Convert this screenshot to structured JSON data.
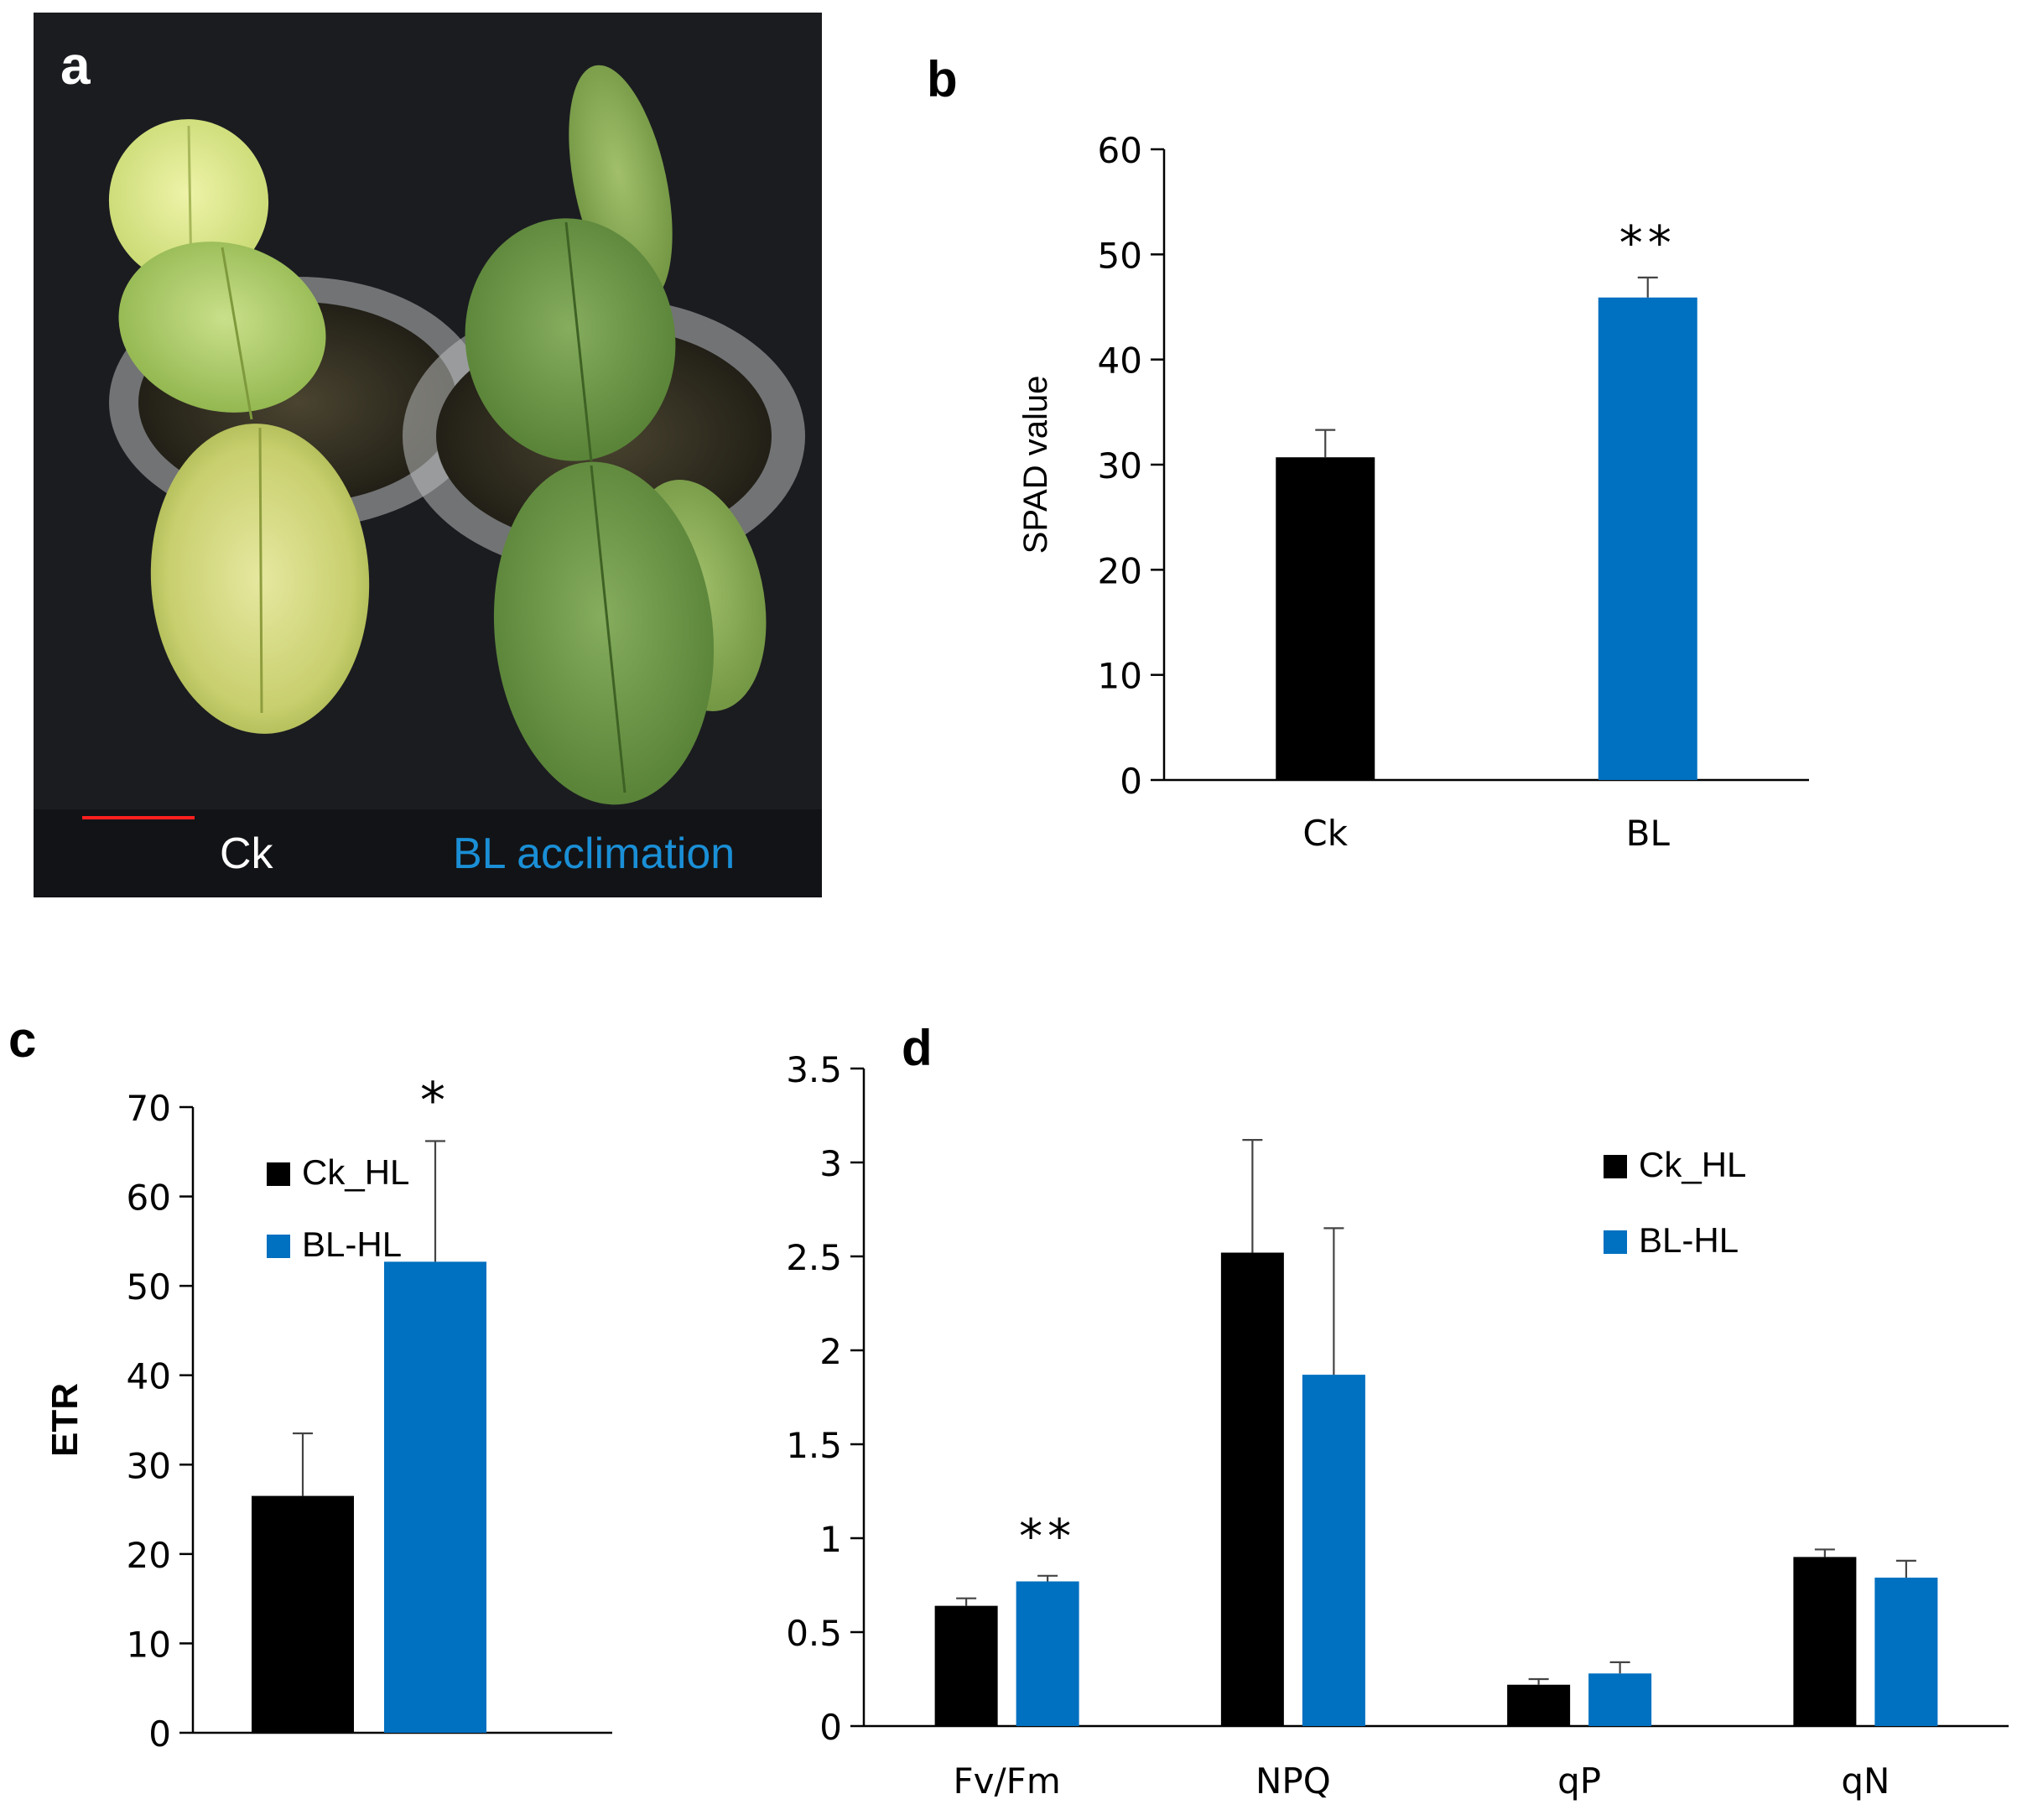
{
  "panel_labels": {
    "a": "a",
    "b": "b",
    "c": "c",
    "d": "d"
  },
  "photo": {
    "left_caption": "Ck",
    "right_caption": "BL acclimation",
    "caption_left_color": "#ffffff",
    "caption_right_color": "#1a8fd6",
    "scale_bar_color": "#ff1f1f"
  },
  "colors": {
    "ck": "#000000",
    "bl": "#0070c0"
  },
  "chart_data": [
    {
      "id": "b",
      "type": "bar",
      "categories": [
        "Ck",
        "BL"
      ],
      "values": [
        30.7,
        45.9
      ],
      "errors": [
        2.6,
        1.9
      ],
      "colors": [
        "#000000",
        "#0070c0"
      ],
      "significance": [
        "",
        "**"
      ],
      "ylabel": "SPAD value",
      "xlabel": "",
      "ylim": [
        0,
        60
      ],
      "yticks": [
        0,
        10,
        20,
        30,
        40,
        50,
        60
      ],
      "grid": false
    },
    {
      "id": "c",
      "type": "bar",
      "categories": [
        ""
      ],
      "series": [
        {
          "name": "Ck_HL",
          "values": [
            26.5
          ],
          "errors": [
            7.0
          ],
          "color": "#000000"
        },
        {
          "name": "BL-HL",
          "values": [
            52.7
          ],
          "errors": [
            13.5
          ],
          "color": "#0070c0"
        }
      ],
      "significance": [
        "*"
      ],
      "ylabel": "ETR",
      "xlabel": "",
      "ylim": [
        0,
        70
      ],
      "yticks": [
        0,
        10,
        20,
        30,
        40,
        50,
        60,
        70
      ],
      "legend": "top-left",
      "grid": false
    },
    {
      "id": "d",
      "type": "bar",
      "categories": [
        "Fv/Fm",
        "NPQ",
        "qP",
        "qN"
      ],
      "series": [
        {
          "name": "Ck_HL",
          "values": [
            0.64,
            2.52,
            0.22,
            0.9
          ],
          "errors": [
            0.04,
            0.6,
            0.03,
            0.04
          ],
          "color": "#000000"
        },
        {
          "name": "BL-HL",
          "values": [
            0.77,
            1.87,
            0.28,
            0.79
          ],
          "errors": [
            0.03,
            0.78,
            0.06,
            0.09
          ],
          "color": "#0070c0"
        }
      ],
      "significance": [
        "**",
        "",
        "",
        ""
      ],
      "ylabel": "",
      "xlabel": "",
      "ylim": [
        0,
        3.5
      ],
      "yticks": [
        "0",
        "0.5",
        "1",
        "1.5",
        "2",
        "2.5",
        "3",
        "3.5"
      ],
      "legend": "top-right",
      "grid": false
    }
  ]
}
